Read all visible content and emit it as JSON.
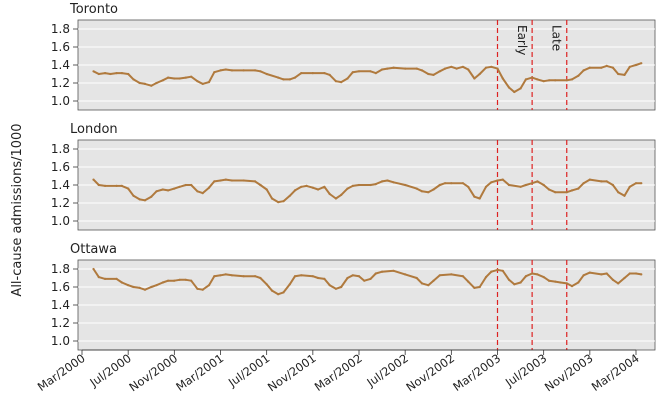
{
  "chart_data": {
    "type": "line",
    "ylabel": "All-cause admissions/1000",
    "x_ticks": [
      "Mar/2000",
      "Jul/2000",
      "Nov/2000",
      "Mar/2001",
      "Jul/2001",
      "Nov/2001",
      "Mar/2002",
      "Jul/2002",
      "Nov/2002",
      "Mar/2003",
      "Jul/2003",
      "Nov/2003",
      "Mar/2004"
    ],
    "y_ticks": [
      "1.0",
      "1.2",
      "1.4",
      "1.6",
      "1.8"
    ],
    "ylim": [
      0.9,
      1.9
    ],
    "grid": true,
    "line_color": "#b07a3e",
    "reference_line_color": "#dd2222",
    "reference_lines": [
      {
        "date": "2003-03"
      },
      {
        "date": "2003-06"
      },
      {
        "date": "2003-09"
      }
    ],
    "period_labels": [
      {
        "text": "Early",
        "from": "2003-03",
        "to": "2003-06"
      },
      {
        "text": "Late",
        "from": "2003-06",
        "to": "2003-09"
      }
    ],
    "panels": [
      {
        "title": "Toronto",
        "points": [
          [
            "2000-04-01",
            1.33
          ],
          [
            "2000-04-15",
            1.3
          ],
          [
            "2000-05-01",
            1.31
          ],
          [
            "2000-05-15",
            1.3
          ],
          [
            "2000-06-01",
            1.31
          ],
          [
            "2000-06-15",
            1.31
          ],
          [
            "2000-07-01",
            1.3
          ],
          [
            "2000-07-15",
            1.24
          ],
          [
            "2000-08-01",
            1.2
          ],
          [
            "2000-08-15",
            1.19
          ],
          [
            "2000-09-01",
            1.17
          ],
          [
            "2000-09-15",
            1.2
          ],
          [
            "2000-10-01",
            1.23
          ],
          [
            "2000-10-15",
            1.26
          ],
          [
            "2000-11-01",
            1.25
          ],
          [
            "2000-11-15",
            1.25
          ],
          [
            "2000-12-01",
            1.26
          ],
          [
            "2000-12-15",
            1.27
          ],
          [
            "2001-01-01",
            1.22
          ],
          [
            "2001-01-15",
            1.19
          ],
          [
            "2001-02-01",
            1.21
          ],
          [
            "2001-02-15",
            1.32
          ],
          [
            "2001-03-01",
            1.34
          ],
          [
            "2001-03-15",
            1.35
          ],
          [
            "2001-04-01",
            1.34
          ],
          [
            "2001-05-01",
            1.34
          ],
          [
            "2001-06-01",
            1.34
          ],
          [
            "2001-06-15",
            1.33
          ],
          [
            "2001-07-01",
            1.3
          ],
          [
            "2001-08-01",
            1.26
          ],
          [
            "2001-08-15",
            1.24
          ],
          [
            "2001-09-01",
            1.24
          ],
          [
            "2001-09-15",
            1.26
          ],
          [
            "2001-10-01",
            1.31
          ],
          [
            "2001-11-01",
            1.31
          ],
          [
            "2001-12-01",
            1.31
          ],
          [
            "2001-12-15",
            1.29
          ],
          [
            "2002-01-01",
            1.22
          ],
          [
            "2002-01-15",
            1.21
          ],
          [
            "2002-02-01",
            1.25
          ],
          [
            "2002-02-15",
            1.32
          ],
          [
            "2002-03-01",
            1.33
          ],
          [
            "2002-04-01",
            1.33
          ],
          [
            "2002-04-15",
            1.31
          ],
          [
            "2002-05-01",
            1.35
          ],
          [
            "2002-05-15",
            1.36
          ],
          [
            "2002-06-01",
            1.37
          ],
          [
            "2002-07-01",
            1.36
          ],
          [
            "2002-08-01",
            1.36
          ],
          [
            "2002-08-15",
            1.34
          ],
          [
            "2002-09-01",
            1.3
          ],
          [
            "2002-09-15",
            1.29
          ],
          [
            "2002-10-01",
            1.33
          ],
          [
            "2002-10-15",
            1.36
          ],
          [
            "2002-11-01",
            1.38
          ],
          [
            "2002-11-15",
            1.36
          ],
          [
            "2002-12-01",
            1.38
          ],
          [
            "2002-12-15",
            1.35
          ],
          [
            "2003-01-01",
            1.25
          ],
          [
            "2003-01-15",
            1.3
          ],
          [
            "2003-02-01",
            1.37
          ],
          [
            "2003-02-15",
            1.38
          ],
          [
            "2003-03-01",
            1.36
          ],
          [
            "2003-03-15",
            1.25
          ],
          [
            "2003-04-01",
            1.15
          ],
          [
            "2003-04-15",
            1.1
          ],
          [
            "2003-05-01",
            1.14
          ],
          [
            "2003-05-15",
            1.24
          ],
          [
            "2003-06-01",
            1.26
          ],
          [
            "2003-06-15",
            1.24
          ],
          [
            "2003-07-01",
            1.22
          ],
          [
            "2003-07-15",
            1.23
          ],
          [
            "2003-08-01",
            1.23
          ],
          [
            "2003-09-01",
            1.23
          ],
          [
            "2003-09-15",
            1.24
          ],
          [
            "2003-10-01",
            1.28
          ],
          [
            "2003-10-15",
            1.34
          ],
          [
            "2003-11-01",
            1.37
          ],
          [
            "2003-12-01",
            1.37
          ],
          [
            "2003-12-15",
            1.39
          ],
          [
            "2004-01-01",
            1.37
          ],
          [
            "2004-01-15",
            1.3
          ],
          [
            "2004-02-01",
            1.29
          ],
          [
            "2004-02-15",
            1.38
          ],
          [
            "2004-03-01",
            1.4
          ],
          [
            "2004-03-15",
            1.42
          ]
        ]
      },
      {
        "title": "London",
        "points": [
          [
            "2000-04-01",
            1.46
          ],
          [
            "2000-04-15",
            1.4
          ],
          [
            "2000-05-01",
            1.39
          ],
          [
            "2000-06-01",
            1.39
          ],
          [
            "2000-06-15",
            1.39
          ],
          [
            "2000-07-01",
            1.36
          ],
          [
            "2000-07-15",
            1.28
          ],
          [
            "2000-08-01",
            1.24
          ],
          [
            "2000-08-15",
            1.23
          ],
          [
            "2000-09-01",
            1.27
          ],
          [
            "2000-09-15",
            1.33
          ],
          [
            "2000-10-01",
            1.35
          ],
          [
            "2000-10-15",
            1.34
          ],
          [
            "2000-11-01",
            1.36
          ],
          [
            "2000-11-15",
            1.38
          ],
          [
            "2000-12-01",
            1.4
          ],
          [
            "2000-12-15",
            1.4
          ],
          [
            "2001-01-01",
            1.33
          ],
          [
            "2001-01-15",
            1.31
          ],
          [
            "2001-02-01",
            1.37
          ],
          [
            "2001-02-15",
            1.44
          ],
          [
            "2001-03-01",
            1.45
          ],
          [
            "2001-03-15",
            1.46
          ],
          [
            "2001-04-01",
            1.45
          ],
          [
            "2001-05-01",
            1.45
          ],
          [
            "2001-06-01",
            1.44
          ],
          [
            "2001-06-15",
            1.4
          ],
          [
            "2001-07-01",
            1.35
          ],
          [
            "2001-07-15",
            1.25
          ],
          [
            "2001-08-01",
            1.21
          ],
          [
            "2001-08-15",
            1.22
          ],
          [
            "2001-09-01",
            1.28
          ],
          [
            "2001-09-15",
            1.34
          ],
          [
            "2001-10-01",
            1.38
          ],
          [
            "2001-10-15",
            1.39
          ],
          [
            "2001-11-01",
            1.37
          ],
          [
            "2001-11-15",
            1.35
          ],
          [
            "2001-12-01",
            1.38
          ],
          [
            "2001-12-15",
            1.3
          ],
          [
            "2002-01-01",
            1.25
          ],
          [
            "2002-01-15",
            1.29
          ],
          [
            "2002-02-01",
            1.36
          ],
          [
            "2002-02-15",
            1.39
          ],
          [
            "2002-03-01",
            1.4
          ],
          [
            "2002-04-01",
            1.4
          ],
          [
            "2002-04-15",
            1.41
          ],
          [
            "2002-05-01",
            1.44
          ],
          [
            "2002-05-15",
            1.45
          ],
          [
            "2002-06-01",
            1.43
          ],
          [
            "2002-07-01",
            1.4
          ],
          [
            "2002-08-01",
            1.36
          ],
          [
            "2002-08-15",
            1.33
          ],
          [
            "2002-09-01",
            1.32
          ],
          [
            "2002-09-15",
            1.35
          ],
          [
            "2002-10-01",
            1.4
          ],
          [
            "2002-10-15",
            1.42
          ],
          [
            "2002-11-01",
            1.42
          ],
          [
            "2002-12-01",
            1.42
          ],
          [
            "2002-12-15",
            1.38
          ],
          [
            "2003-01-01",
            1.27
          ],
          [
            "2003-01-15",
            1.25
          ],
          [
            "2003-02-01",
            1.38
          ],
          [
            "2003-02-15",
            1.43
          ],
          [
            "2003-03-01",
            1.45
          ],
          [
            "2003-03-15",
            1.46
          ],
          [
            "2003-04-01",
            1.4
          ],
          [
            "2003-05-01",
            1.38
          ],
          [
            "2003-05-15",
            1.4
          ],
          [
            "2003-06-01",
            1.42
          ],
          [
            "2003-06-15",
            1.44
          ],
          [
            "2003-07-01",
            1.4
          ],
          [
            "2003-07-15",
            1.35
          ],
          [
            "2003-08-01",
            1.32
          ],
          [
            "2003-09-01",
            1.32
          ],
          [
            "2003-09-15",
            1.34
          ],
          [
            "2003-10-01",
            1.36
          ],
          [
            "2003-10-15",
            1.42
          ],
          [
            "2003-11-01",
            1.46
          ],
          [
            "2003-12-01",
            1.44
          ],
          [
            "2003-12-15",
            1.44
          ],
          [
            "2004-01-01",
            1.4
          ],
          [
            "2004-01-15",
            1.32
          ],
          [
            "2004-02-01",
            1.28
          ],
          [
            "2004-02-15",
            1.38
          ],
          [
            "2004-03-01",
            1.42
          ],
          [
            "2004-03-15",
            1.42
          ]
        ]
      },
      {
        "title": "Ottawa",
        "points": [
          [
            "2000-04-01",
            1.8
          ],
          [
            "2000-04-15",
            1.71
          ],
          [
            "2000-05-01",
            1.69
          ],
          [
            "2000-06-01",
            1.69
          ],
          [
            "2000-06-15",
            1.65
          ],
          [
            "2000-07-01",
            1.62
          ],
          [
            "2000-07-15",
            1.6
          ],
          [
            "2000-08-01",
            1.59
          ],
          [
            "2000-08-15",
            1.57
          ],
          [
            "2000-09-01",
            1.6
          ],
          [
            "2000-09-15",
            1.62
          ],
          [
            "2000-10-01",
            1.65
          ],
          [
            "2000-10-15",
            1.67
          ],
          [
            "2000-11-01",
            1.67
          ],
          [
            "2000-11-15",
            1.68
          ],
          [
            "2000-12-01",
            1.68
          ],
          [
            "2000-12-15",
            1.67
          ],
          [
            "2001-01-01",
            1.58
          ],
          [
            "2001-01-15",
            1.57
          ],
          [
            "2001-02-01",
            1.62
          ],
          [
            "2001-02-15",
            1.72
          ],
          [
            "2001-03-01",
            1.73
          ],
          [
            "2001-03-15",
            1.74
          ],
          [
            "2001-04-01",
            1.73
          ],
          [
            "2001-05-01",
            1.72
          ],
          [
            "2001-06-01",
            1.72
          ],
          [
            "2001-06-15",
            1.7
          ],
          [
            "2001-07-01",
            1.63
          ],
          [
            "2001-07-15",
            1.56
          ],
          [
            "2001-08-01",
            1.52
          ],
          [
            "2001-08-15",
            1.54
          ],
          [
            "2001-09-01",
            1.63
          ],
          [
            "2001-09-15",
            1.72
          ],
          [
            "2001-10-01",
            1.73
          ],
          [
            "2001-11-01",
            1.72
          ],
          [
            "2001-11-15",
            1.7
          ],
          [
            "2001-12-01",
            1.69
          ],
          [
            "2001-12-15",
            1.62
          ],
          [
            "2002-01-01",
            1.58
          ],
          [
            "2002-01-15",
            1.6
          ],
          [
            "2002-02-01",
            1.7
          ],
          [
            "2002-02-15",
            1.73
          ],
          [
            "2002-03-01",
            1.72
          ],
          [
            "2002-03-15",
            1.67
          ],
          [
            "2002-04-01",
            1.69
          ],
          [
            "2002-04-15",
            1.75
          ],
          [
            "2002-05-01",
            1.77
          ],
          [
            "2002-06-01",
            1.78
          ],
          [
            "2002-07-01",
            1.74
          ],
          [
            "2002-08-01",
            1.7
          ],
          [
            "2002-08-15",
            1.64
          ],
          [
            "2002-09-01",
            1.62
          ],
          [
            "2002-09-15",
            1.67
          ],
          [
            "2002-10-01",
            1.73
          ],
          [
            "2002-11-01",
            1.74
          ],
          [
            "2002-12-01",
            1.72
          ],
          [
            "2002-12-15",
            1.66
          ],
          [
            "2003-01-01",
            1.59
          ],
          [
            "2003-01-15",
            1.6
          ],
          [
            "2003-02-01",
            1.71
          ],
          [
            "2003-02-15",
            1.77
          ],
          [
            "2003-03-01",
            1.79
          ],
          [
            "2003-03-15",
            1.78
          ],
          [
            "2003-04-01",
            1.68
          ],
          [
            "2003-04-15",
            1.63
          ],
          [
            "2003-05-01",
            1.65
          ],
          [
            "2003-05-15",
            1.72
          ],
          [
            "2003-06-01",
            1.75
          ],
          [
            "2003-06-15",
            1.74
          ],
          [
            "2003-07-01",
            1.71
          ],
          [
            "2003-07-15",
            1.67
          ],
          [
            "2003-08-01",
            1.66
          ],
          [
            "2003-08-15",
            1.65
          ],
          [
            "2003-09-01",
            1.64
          ],
          [
            "2003-09-15",
            1.61
          ],
          [
            "2003-10-01",
            1.65
          ],
          [
            "2003-10-15",
            1.73
          ],
          [
            "2003-11-01",
            1.76
          ],
          [
            "2003-12-01",
            1.74
          ],
          [
            "2003-12-15",
            1.75
          ],
          [
            "2004-01-01",
            1.68
          ],
          [
            "2004-01-15",
            1.64
          ],
          [
            "2004-02-01",
            1.7
          ],
          [
            "2004-02-15",
            1.75
          ],
          [
            "2004-03-01",
            1.75
          ],
          [
            "2004-03-15",
            1.74
          ]
        ]
      }
    ]
  }
}
